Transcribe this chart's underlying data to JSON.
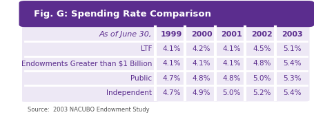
{
  "title": "Fig. G: Spending Rate Comparison",
  "header_bg": "#5b2d8e",
  "header_text_color": "#ffffff",
  "col_header": "As of June 30,",
  "years": [
    "1999",
    "2000",
    "2001",
    "2002",
    "2003"
  ],
  "rows": [
    {
      "label": "LTF",
      "values": [
        "4.1%",
        "4.2%",
        "4.1%",
        "4.5%",
        "5.1%"
      ]
    },
    {
      "label": "Endowments Greater than $1 Billion",
      "values": [
        "4.1%",
        "4.1%",
        "4.1%",
        "4.8%",
        "5.4%"
      ]
    },
    {
      "label": "Public",
      "values": [
        "4.7%",
        "4.8%",
        "4.8%",
        "5.0%",
        "5.3%"
      ]
    },
    {
      "label": "Independent",
      "values": [
        "4.7%",
        "4.9%",
        "5.0%",
        "5.2%",
        "5.4%"
      ]
    }
  ],
  "source": "Source:  2003 NACUBO Endowment Study",
  "cell_bg": "#ede8f5",
  "border_color": "#ffffff",
  "text_color": "#5b2d8e",
  "body_bg": "#ffffff",
  "title_fontsize": 9.5,
  "data_fontsize": 7.5,
  "label_fontsize": 7.5,
  "header_fontsize": 8.0,
  "source_fontsize": 6.0
}
